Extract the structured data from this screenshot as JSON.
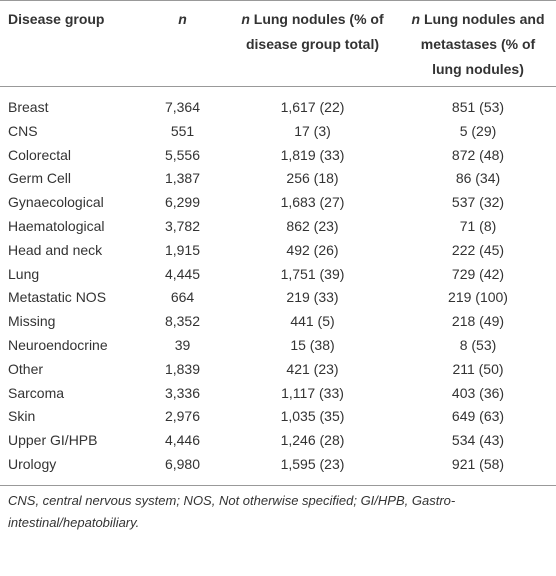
{
  "table": {
    "header": [
      {
        "text": "Disease group"
      },
      {
        "italic": "n"
      },
      {
        "italic": "n",
        "text": "Lung nodules (% of disease group total)"
      },
      {
        "italic": "n",
        "text": "Lung nodules and metastases (% of lung nodules)"
      }
    ],
    "rows": [
      [
        "Breast",
        "7,364",
        "1,617 (22)",
        "851 (53)"
      ],
      [
        "CNS",
        "551",
        "17 (3)",
        "5 (29)"
      ],
      [
        "Colorectal",
        "5,556",
        "1,819 (33)",
        "872 (48)"
      ],
      [
        "Germ Cell",
        "1,387",
        "256 (18)",
        "86 (34)"
      ],
      [
        "Gynaecological",
        "6,299",
        "1,683 (27)",
        "537 (32)"
      ],
      [
        "Haematological",
        "3,782",
        "862 (23)",
        "71 (8)"
      ],
      [
        "Head and neck",
        "1,915",
        "492 (26)",
        "222 (45)"
      ],
      [
        "Lung",
        "4,445",
        "1,751 (39)",
        "729 (42)"
      ],
      [
        "Metastatic NOS",
        "664",
        "219 (33)",
        "219 (100)"
      ],
      [
        "Missing",
        "8,352",
        "441 (5)",
        "218 (49)"
      ],
      [
        "Neuroendocrine",
        "39",
        "15 (38)",
        "8 (53)"
      ],
      [
        "Other",
        "1,839",
        "421 (23)",
        "211 (50)"
      ],
      [
        "Sarcoma",
        "3,336",
        "1,117 (33)",
        "403 (36)"
      ],
      [
        "Skin",
        "2,976",
        "1,035 (35)",
        "649 (63)"
      ],
      [
        "Upper GI/HPB",
        "4,446",
        "1,246 (28)",
        "534 (43)"
      ],
      [
        "Urology",
        "6,980",
        "1,595 (23)",
        "921 (58)"
      ]
    ],
    "footnote": "CNS, central nervous system; NOS, Not otherwise specified; GI/HPB, Gastro-intestinal/hepatobiliary."
  }
}
